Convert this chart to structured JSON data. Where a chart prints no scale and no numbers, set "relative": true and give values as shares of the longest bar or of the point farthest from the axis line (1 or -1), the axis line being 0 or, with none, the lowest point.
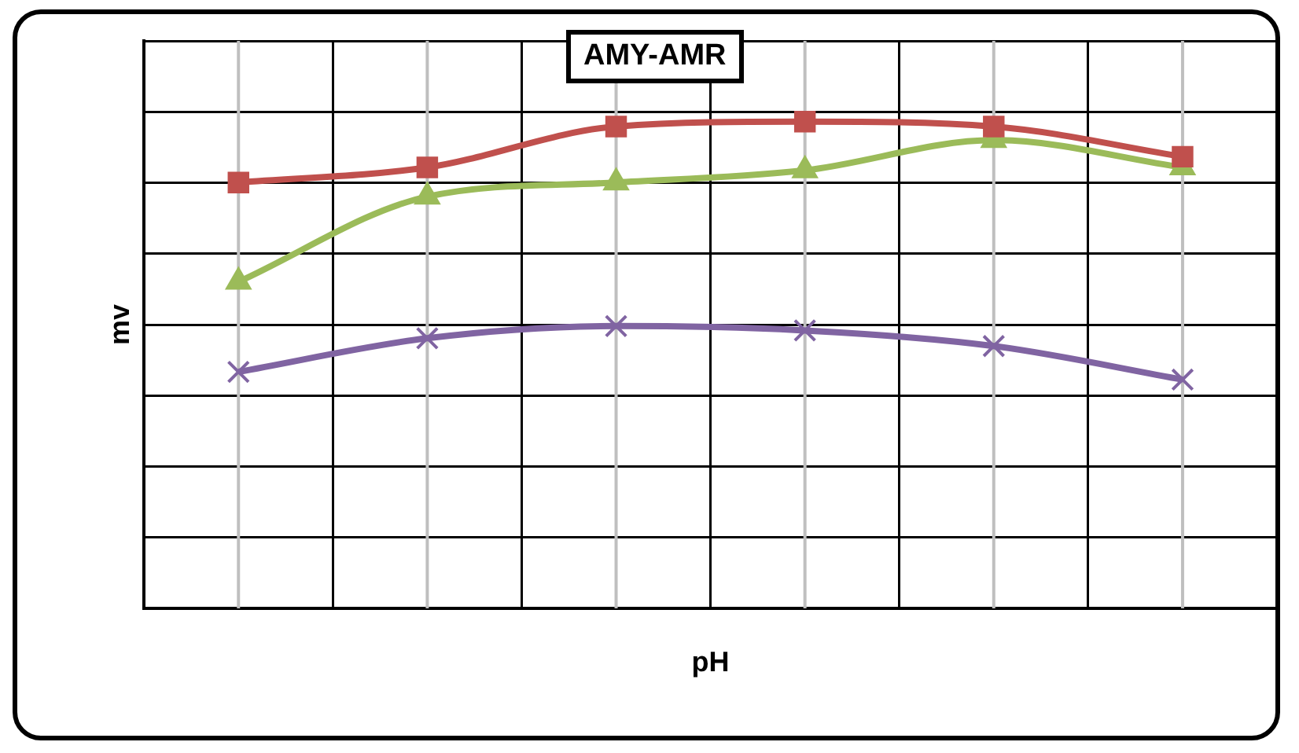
{
  "chart_data": {
    "type": "line",
    "title": "AMY-AMR",
    "xlabel": "pH",
    "ylabel": "mv",
    "relative": true,
    "grid": true,
    "legend": false,
    "line_style": "solid",
    "categories": [
      null,
      null,
      null,
      null,
      null,
      null
    ],
    "series": [
      {
        "color": "#c0504d",
        "marker": "square",
        "values": [
          0.875,
          0.906,
          0.99,
          1,
          0.99,
          0.928
        ]
      },
      {
        "color": "#9bbb59",
        "marker": "triangle",
        "values": [
          0.671,
          0.846,
          0.875,
          0.9,
          0.962,
          0.906
        ]
      },
      {
        "color": "#8064a2",
        "marker": "cross",
        "values": [
          0.486,
          0.555,
          0.58,
          0.571,
          0.539,
          0.47
        ]
      }
    ]
  }
}
